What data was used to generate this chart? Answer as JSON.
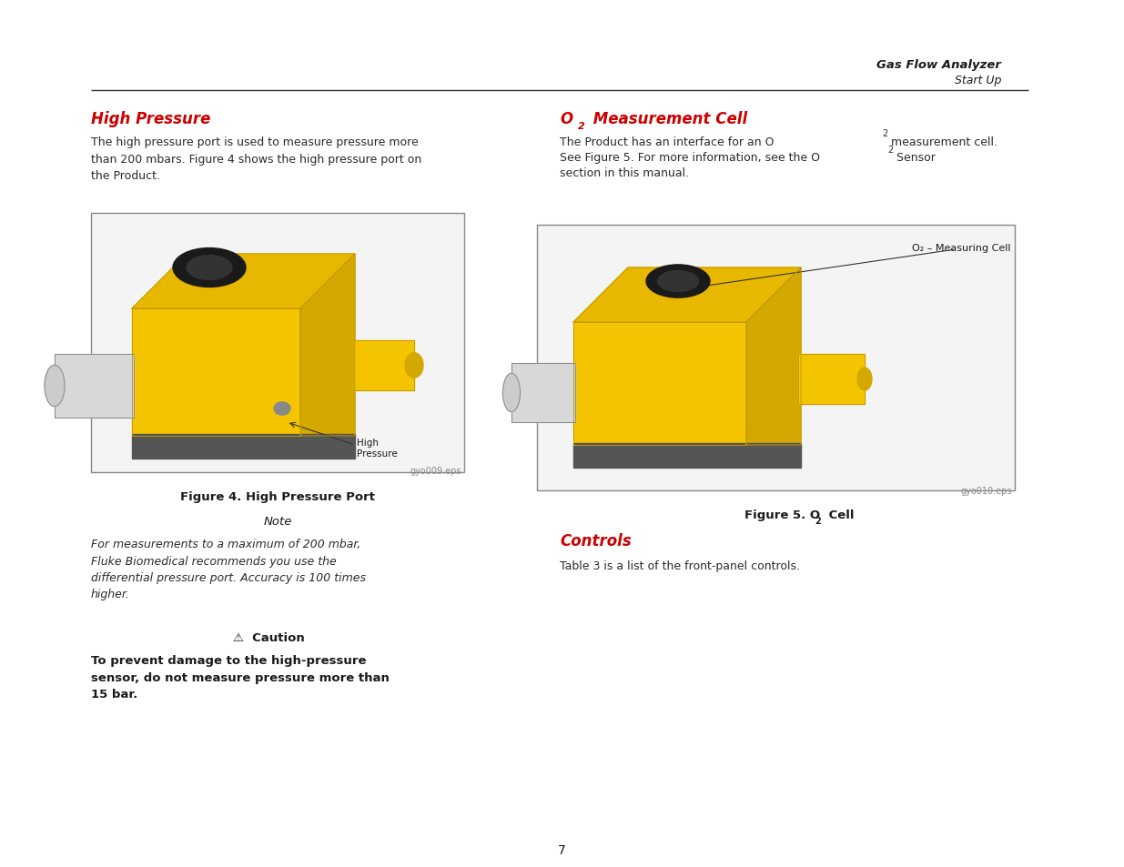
{
  "page_width": 12.35,
  "page_height": 9.54,
  "bg_color": "#ffffff",
  "header_bold_italic": "Gas Flow Analyzer",
  "header_italic": "Start Up",
  "red_color": "#cc0000",
  "black_color": "#1a1a1a",
  "dark_gray": "#2a2a2a",
  "gray_text": "#555555",
  "section1_title": "High Pressure",
  "section1_body": "The high pressure port is used to measure pressure more\nthan 200 mbars. Figure 4 shows the high pressure port on\nthe Product.",
  "fig4_caption": "Figure 4. High Pressure Port",
  "fig4_filename": "gyo009.eps",
  "note_title": "Note",
  "note_body": "For measurements to a maximum of 200 mbar,\nFluke Biomedical recommends you use the\ndifferential pressure port. Accuracy is 100 times\nhigher.",
  "caution_title": "⚠  Caution",
  "caution_body": "To prevent damage to the high-pressure\nsensor, do not measure pressure more than\n15 bar.",
  "section2_title": "O₂ Measurement Cell",
  "section2_body_line1": "The Product has an interface for an O",
  "section2_body_sub1": "2",
  "section2_body_line1b": " measurement cell.",
  "section2_body_line2": "See Figure 5. For more information, see the O",
  "section2_body_sub2": "2",
  "section2_body_line2b": " Sensor",
  "section2_body_line3": "section in this manual.",
  "fig5_label": "O₂ – Measuring Cell",
  "fig5_caption": "Figure 5. O",
  "fig5_caption_sub": "2",
  "fig5_caption_end": " Cell",
  "fig5_filename": "gyo010.eps",
  "section3_title": "Controls",
  "section3_body": "Table 3 is a list of the front-panel controls.",
  "page_number": "7",
  "yellow": "#F5C400",
  "yellow_dark": "#c49a00",
  "dev_gray": "#8a8a8a",
  "dev_dark": "#555555",
  "dev_white": "#d8d8d8"
}
